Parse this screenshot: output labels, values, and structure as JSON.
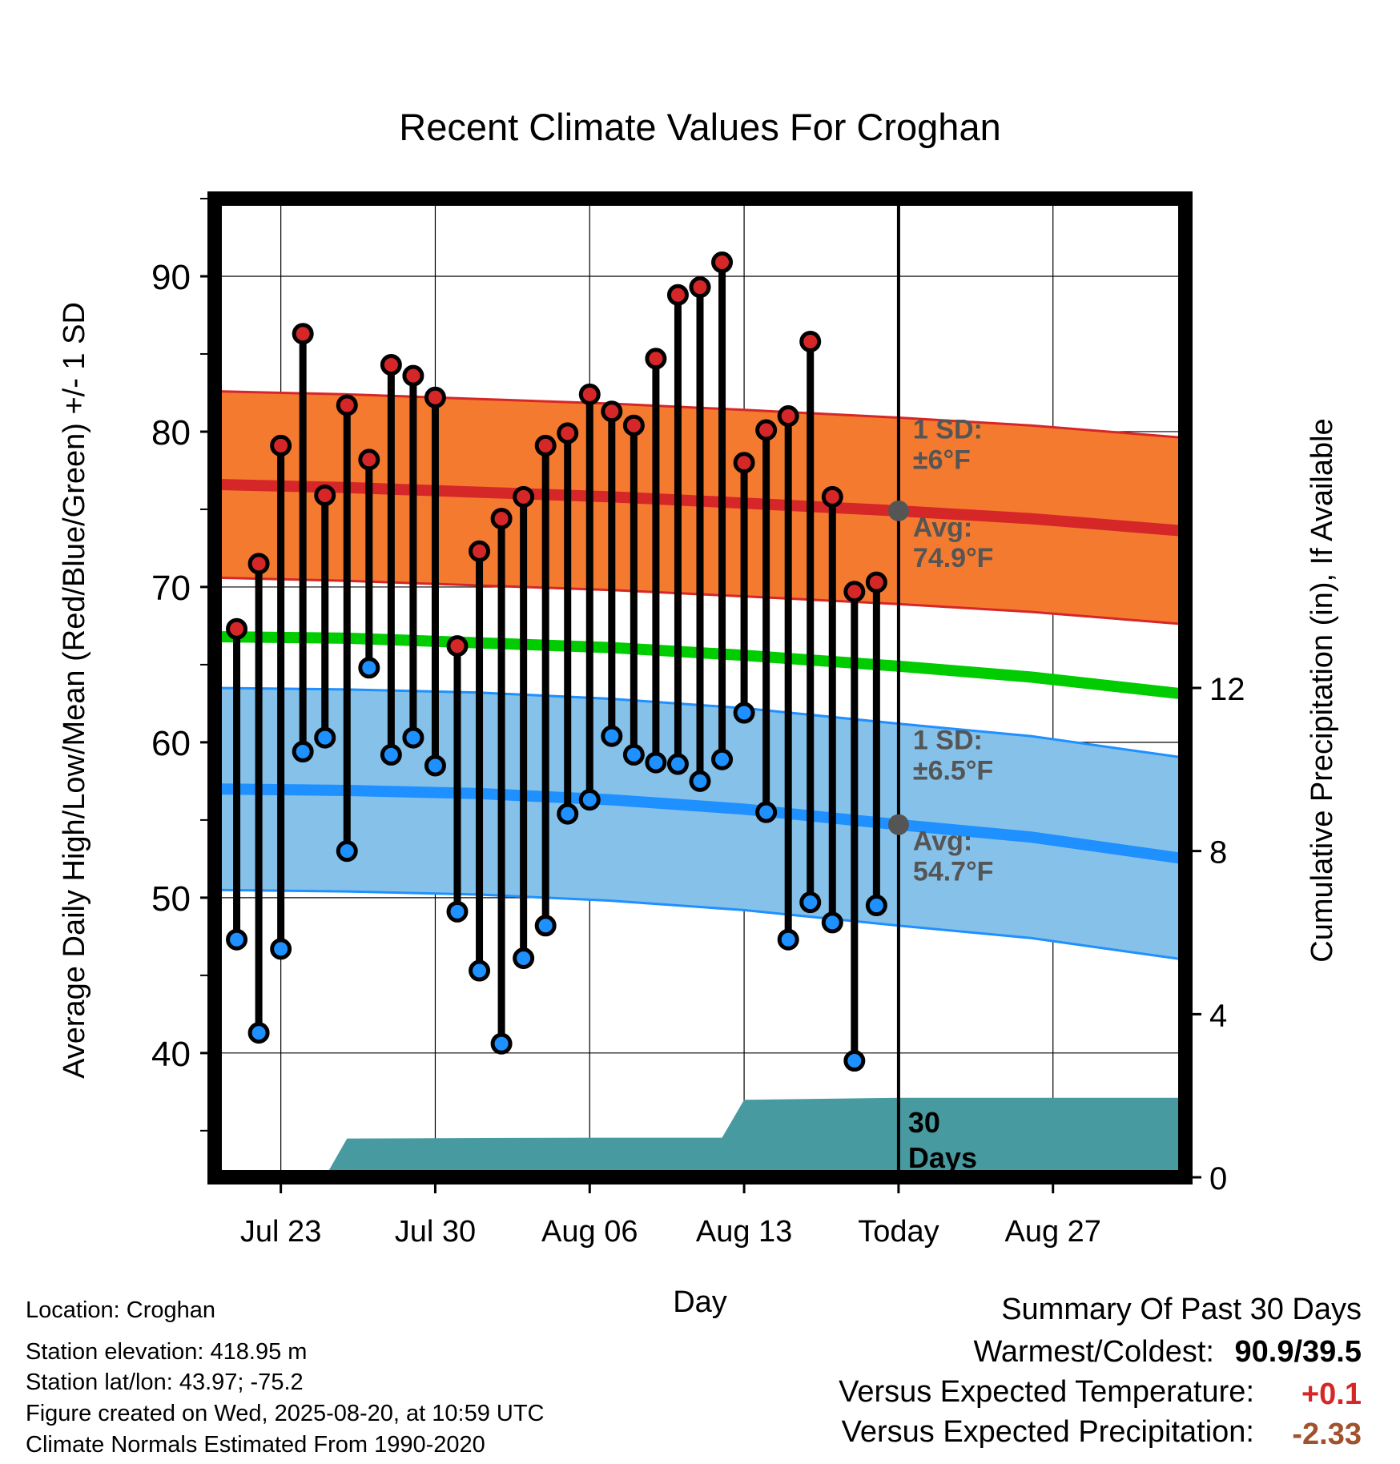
{
  "chart_data": {
    "type": "line",
    "title": "Recent Climate Values For Croghan",
    "xlabel": "Day",
    "ylabel": "Average Daily High/Low/Mean (Red/Blue/Green) +/- 1 SD",
    "y2label": "Cumulative Precipitation (in), If Available",
    "ylim": [
      32,
      95
    ],
    "y2lim": [
      0,
      24
    ],
    "yticks": [
      40,
      50,
      60,
      70,
      80,
      90
    ],
    "y2ticks": [
      0,
      4,
      8,
      12
    ],
    "xlim": [
      "Jul 20",
      "Sep 02"
    ],
    "xticks": [
      {
        "date": "2025-07-23",
        "label": "Jul 23"
      },
      {
        "date": "2025-07-30",
        "label": "Jul 30"
      },
      {
        "date": "2025-08-06",
        "label": "Aug 06"
      },
      {
        "date": "2025-08-13",
        "label": "Aug 13"
      },
      {
        "date": "2025-08-20",
        "label": "Today"
      },
      {
        "date": "2025-08-27",
        "label": "Aug 27"
      }
    ],
    "grid": true,
    "today": "2025-08-20",
    "today_label": "30 Days",
    "daily": {
      "dates": [
        "2025-07-21",
        "2025-07-22",
        "2025-07-23",
        "2025-07-24",
        "2025-07-25",
        "2025-07-26",
        "2025-07-27",
        "2025-07-28",
        "2025-07-29",
        "2025-07-30",
        "2025-07-31",
        "2025-08-01",
        "2025-08-02",
        "2025-08-03",
        "2025-08-04",
        "2025-08-05",
        "2025-08-06",
        "2025-08-07",
        "2025-08-08",
        "2025-08-09",
        "2025-08-10",
        "2025-08-11",
        "2025-08-12",
        "2025-08-13",
        "2025-08-14",
        "2025-08-15",
        "2025-08-16",
        "2025-08-17",
        "2025-08-18",
        "2025-08-19"
      ],
      "highs": [
        67.3,
        71.5,
        79.1,
        86.3,
        75.9,
        81.7,
        78.2,
        84.3,
        83.6,
        82.2,
        66.2,
        72.3,
        74.4,
        75.8,
        79.1,
        79.9,
        82.4,
        81.3,
        80.4,
        84.7,
        88.8,
        89.3,
        90.9,
        78.0,
        80.1,
        81.0,
        85.8,
        75.8,
        69.7,
        70.3
      ],
      "lows": [
        47.3,
        41.3,
        46.7,
        59.4,
        60.3,
        53.0,
        64.8,
        59.2,
        60.3,
        58.5,
        49.1,
        45.3,
        40.6,
        46.1,
        48.2,
        55.4,
        56.3,
        60.4,
        59.2,
        58.7,
        58.6,
        57.5,
        58.9,
        61.9,
        55.5,
        47.3,
        49.7,
        48.4,
        39.5,
        49.5
      ]
    },
    "normals": {
      "dates": [
        "2025-07-20",
        "2025-07-26",
        "2025-08-01",
        "2025-08-07",
        "2025-08-13",
        "2025-08-20",
        "2025-08-26",
        "2025-09-02"
      ],
      "high_avg": [
        76.6,
        76.4,
        76.1,
        75.8,
        75.4,
        74.9,
        74.4,
        73.6
      ],
      "high_sd": 6,
      "low_avg": [
        57.0,
        56.9,
        56.7,
        56.3,
        55.7,
        54.7,
        53.9,
        52.5
      ],
      "low_sd": 6.5,
      "mean_avg": [
        66.8,
        66.7,
        66.4,
        66.1,
        65.6,
        64.9,
        64.2,
        63.1
      ]
    },
    "precip_cumulative": {
      "dates": [
        "2025-07-20",
        "2025-07-25",
        "2025-07-26",
        "2025-08-06",
        "2025-08-12",
        "2025-08-13",
        "2025-08-20",
        "2025-09-02"
      ],
      "values": [
        0,
        0,
        0.95,
        0.97,
        0.97,
        1.9,
        1.95,
        1.95
      ]
    },
    "annotations": {
      "high_sd_label": [
        "1 SD:",
        "±6°F"
      ],
      "high_avg_label": [
        "Avg:",
        "74.9°F"
      ],
      "low_sd_label": [
        "1 SD:",
        "±6.5°F"
      ],
      "low_avg_label": [
        "Avg:",
        "54.7°F"
      ]
    },
    "colors": {
      "high_band": "#f47a30",
      "high_line": "#d62728",
      "low_band": "#85c1e9",
      "low_line": "#1e90ff",
      "mean_line": "#00cc00",
      "precip": "#479aa0",
      "high_marker": "#d62728",
      "low_marker": "#1e90ff",
      "annotation": "#555555"
    }
  },
  "footer": {
    "location": "Location: Croghan",
    "elevation": "Station elevation: 418.95 m",
    "latlon": "Station lat/lon: 43.97; -75.2",
    "created": "Figure created on Wed, 2025-08-20, at 10:59 UTC",
    "normals": "Climate Normals Estimated From 1990-2020"
  },
  "summary": {
    "title": "Summary Of Past 30 Days",
    "warm_cold_label": "Warmest/Coldest:",
    "warm_cold_value": "90.9/39.5",
    "temp_label": "Versus Expected Temperature:",
    "temp_value": "+0.1",
    "temp_color": "#d62728",
    "precip_label": "Versus Expected Precipitation:",
    "precip_value": "-2.33",
    "precip_color": "#a0522d"
  }
}
